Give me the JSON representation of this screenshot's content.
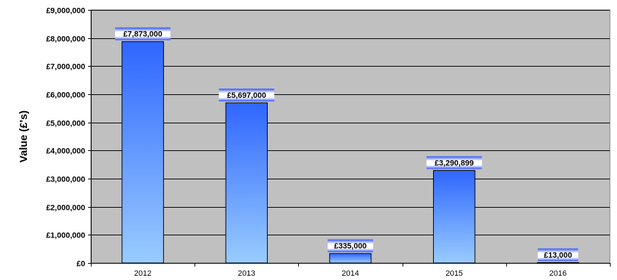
{
  "chart_data": {
    "type": "bar",
    "title": "",
    "xlabel": "",
    "ylabel": "Value (£'s)",
    "categories": [
      "2012",
      "2013",
      "2014",
      "2015",
      "2016"
    ],
    "values": [
      7873000,
      5697000,
      335000,
      3290899,
      13000
    ],
    "data_labels": [
      "£7,873,000",
      "£5,697,000",
      "£335,000",
      "£3,290,899",
      "£13,000"
    ],
    "ylim": [
      0,
      9000000
    ],
    "yticks": [
      0,
      1000000,
      2000000,
      3000000,
      4000000,
      5000000,
      6000000,
      7000000,
      8000000,
      9000000
    ],
    "ytick_labels": [
      "£0",
      "£1,000,000",
      "£2,000,000",
      "£3,000,000",
      "£4,000,000",
      "£5,000,000",
      "£6,000,000",
      "£7,000,000",
      "£8,000,000",
      "£9,000,000"
    ],
    "grid": true,
    "legend": "none",
    "colors": {
      "plot_background": "#c0c0c0",
      "bar_top": "#2f66ff",
      "bar_bottom": "#99ccff",
      "bar_border": "#000000",
      "gridline": "#000000",
      "label_band_top": "#3355ff",
      "label_band_mid": "#ffffff"
    }
  }
}
